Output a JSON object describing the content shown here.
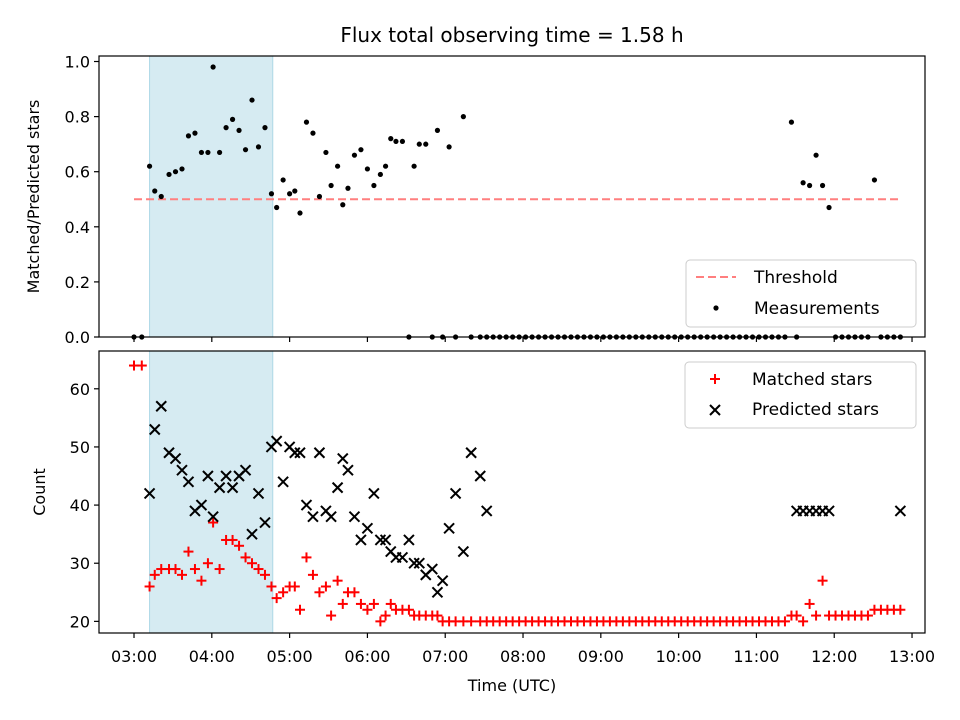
{
  "colors": {
    "threshold": "#ff7f7f",
    "matched": "#ff0000",
    "predicted": "#000000",
    "measurement": "#000000",
    "shade": "#add8e6"
  },
  "chart_data": [
    {
      "type": "scatter",
      "title": "Flux total observing time = 1.58 h",
      "xlabel": "",
      "ylabel": "Matched/Predicted stars",
      "xlim": [
        "02:33",
        "13:10"
      ],
      "ylim": [
        0,
        1.02
      ],
      "yticks": [
        "0.0",
        "0.2",
        "0.4",
        "0.6",
        "0.8",
        "1.0"
      ],
      "shaded_interval": [
        "03:12",
        "04:47"
      ],
      "legend_position": "lower right",
      "threshold": {
        "name": "Threshold",
        "value": 0.5,
        "x_range": [
          "03:00",
          "12:50"
        ]
      },
      "series": [
        {
          "name": "Measurements",
          "x": [
            "03:00",
            "03:06",
            "03:12",
            "03:16",
            "03:21",
            "03:27",
            "03:32",
            "03:37",
            "03:42",
            "03:47",
            "03:52",
            "03:57",
            "04:01",
            "04:06",
            "04:11",
            "04:16",
            "04:21",
            "04:26",
            "04:31",
            "04:36",
            "04:41",
            "04:46",
            "04:50",
            "04:55",
            "05:00",
            "05:04",
            "05:08",
            "05:13",
            "05:18",
            "05:23",
            "05:28",
            "05:32",
            "05:37",
            "05:41",
            "05:45",
            "05:50",
            "05:55",
            "06:00",
            "06:05",
            "06:10",
            "06:14",
            "06:18",
            "06:22",
            "06:27",
            "06:32",
            "06:36",
            "06:40",
            "06:45",
            "06:50",
            "06:54",
            "06:58",
            "07:03",
            "07:08",
            "07:14",
            "07:20",
            "07:27",
            "07:32",
            "07:37",
            "07:42",
            "07:47",
            "07:52",
            "07:57",
            "08:02",
            "08:07",
            "08:12",
            "08:17",
            "08:22",
            "08:27",
            "08:32",
            "08:37",
            "08:42",
            "08:47",
            "08:52",
            "08:57",
            "09:02",
            "09:07",
            "09:12",
            "09:17",
            "09:22",
            "09:27",
            "09:32",
            "09:37",
            "09:42",
            "09:47",
            "09:52",
            "09:57",
            "10:02",
            "10:07",
            "10:12",
            "10:17",
            "10:22",
            "10:27",
            "10:32",
            "10:37",
            "10:42",
            "10:47",
            "10:52",
            "10:57",
            "11:02",
            "11:07",
            "11:12",
            "11:17",
            "11:22",
            "11:27",
            "11:31",
            "11:36",
            "11:41",
            "11:46",
            "11:51",
            "11:56",
            "12:01",
            "12:06",
            "12:11",
            "12:16",
            "12:21",
            "12:26",
            "12:31",
            "12:36",
            "12:41",
            "12:46",
            "12:51"
          ],
          "y": [
            0,
            0,
            0.62,
            0.53,
            0.51,
            0.59,
            0.6,
            0.61,
            0.73,
            0.74,
            0.67,
            0.67,
            0.98,
            0.67,
            0.76,
            0.79,
            0.75,
            0.68,
            0.86,
            0.69,
            0.76,
            0.52,
            0.47,
            0.57,
            0.52,
            0.53,
            0.45,
            0.78,
            0.74,
            0.51,
            0.67,
            0.55,
            0.62,
            0.48,
            0.54,
            0.66,
            0.68,
            0.61,
            0.55,
            0.59,
            0.62,
            0.72,
            0.71,
            0.71,
            0,
            0.62,
            0.7,
            0.7,
            0,
            0.75,
            0,
            0.69,
            0,
            0.8,
            0,
            0,
            0,
            0,
            0,
            0,
            0,
            0,
            0,
            0,
            0,
            0,
            0,
            0,
            0,
            0,
            0,
            0,
            0,
            0,
            0,
            0,
            0,
            0,
            0,
            0,
            0,
            0,
            0,
            0,
            0,
            0,
            0,
            0,
            0,
            0,
            0,
            0,
            0,
            0,
            0,
            0,
            0,
            0,
            0,
            0,
            0,
            0,
            0,
            0.78,
            0,
            0.56,
            0.55,
            0.66,
            0.55,
            0.47,
            0,
            0,
            0,
            0,
            0,
            0,
            0.57,
            0,
            0,
            0,
            0
          ]
        }
      ]
    },
    {
      "type": "scatter",
      "title": "",
      "xlabel": "Time (UTC)",
      "ylabel": "Count",
      "xlim": [
        "02:33",
        "13:10"
      ],
      "ylim": [
        18,
        66.5
      ],
      "yticks": [
        "20",
        "30",
        "40",
        "50",
        "60"
      ],
      "xticks": [
        "03:00",
        "04:00",
        "05:00",
        "06:00",
        "07:00",
        "08:00",
        "09:00",
        "10:00",
        "11:00",
        "12:00",
        "13:00"
      ],
      "shaded_interval": [
        "03:12",
        "04:47"
      ],
      "legend_position": "upper right",
      "series": [
        {
          "name": "Matched stars",
          "marker": "+",
          "x": [
            "03:00",
            "03:06",
            "03:12",
            "03:16",
            "03:21",
            "03:27",
            "03:32",
            "03:37",
            "03:42",
            "03:47",
            "03:52",
            "03:57",
            "04:01",
            "04:06",
            "04:11",
            "04:16",
            "04:21",
            "04:26",
            "04:31",
            "04:36",
            "04:41",
            "04:46",
            "04:50",
            "04:55",
            "05:00",
            "05:04",
            "05:08",
            "05:13",
            "05:18",
            "05:23",
            "05:28",
            "05:32",
            "05:37",
            "05:41",
            "05:45",
            "05:50",
            "05:55",
            "06:00",
            "06:05",
            "06:10",
            "06:14",
            "06:18",
            "06:22",
            "06:27",
            "06:32",
            "06:36",
            "06:40",
            "06:45",
            "06:50",
            "06:54",
            "06:58",
            "07:03",
            "07:08",
            "07:14",
            "07:20",
            "07:27",
            "07:32",
            "07:37",
            "07:42",
            "07:47",
            "07:52",
            "07:57",
            "08:02",
            "08:07",
            "08:12",
            "08:17",
            "08:22",
            "08:27",
            "08:32",
            "08:37",
            "08:42",
            "08:47",
            "08:52",
            "08:57",
            "09:02",
            "09:07",
            "09:12",
            "09:17",
            "09:22",
            "09:27",
            "09:32",
            "09:37",
            "09:42",
            "09:47",
            "09:52",
            "09:57",
            "10:02",
            "10:07",
            "10:12",
            "10:17",
            "10:22",
            "10:27",
            "10:32",
            "10:37",
            "10:42",
            "10:47",
            "10:52",
            "10:57",
            "11:02",
            "11:07",
            "11:12",
            "11:17",
            "11:22",
            "11:27",
            "11:31",
            "11:36",
            "11:41",
            "11:46",
            "11:51",
            "11:56",
            "12:01",
            "12:06",
            "12:11",
            "12:16",
            "12:21",
            "12:26",
            "12:31",
            "12:36",
            "12:41",
            "12:46",
            "12:51"
          ],
          "y": [
            64,
            64,
            26,
            28,
            29,
            29,
            29,
            28,
            32,
            29,
            27,
            30,
            37,
            29,
            34,
            34,
            33,
            31,
            30,
            29,
            28,
            26,
            24,
            25,
            26,
            26,
            22,
            31,
            28,
            25,
            26,
            21,
            27,
            23,
            25,
            25,
            23,
            22,
            23,
            20,
            21,
            23,
            22,
            22,
            22,
            21,
            21,
            21,
            21,
            21,
            20,
            20,
            20,
            20,
            20,
            20,
            20,
            20,
            20,
            20,
            20,
            20,
            20,
            20,
            20,
            20,
            20,
            20,
            20,
            20,
            20,
            20,
            20,
            20,
            20,
            20,
            20,
            20,
            20,
            20,
            20,
            20,
            20,
            20,
            20,
            20,
            20,
            20,
            20,
            20,
            20,
            20,
            20,
            20,
            20,
            20,
            20,
            20,
            20,
            20,
            20,
            20,
            20,
            21,
            21,
            20,
            23,
            21,
            27,
            21,
            21,
            21,
            21,
            21,
            21,
            21,
            22,
            22,
            22,
            22,
            22
          ]
        },
        {
          "name": "Predicted stars",
          "marker": "x",
          "x": [
            "03:12",
            "03:16",
            "03:21",
            "03:27",
            "03:32",
            "03:37",
            "03:42",
            "03:47",
            "03:52",
            "03:57",
            "04:01",
            "04:06",
            "04:11",
            "04:16",
            "04:21",
            "04:26",
            "04:31",
            "04:36",
            "04:41",
            "04:46",
            "04:50",
            "04:55",
            "05:00",
            "05:04",
            "05:08",
            "05:13",
            "05:18",
            "05:23",
            "05:28",
            "05:32",
            "05:37",
            "05:41",
            "05:45",
            "05:50",
            "05:55",
            "06:00",
            "06:05",
            "06:10",
            "06:14",
            "06:18",
            "06:22",
            "06:27",
            "06:32",
            "06:36",
            "06:40",
            "06:45",
            "06:50",
            "06:54",
            "06:58",
            "07:03",
            "07:08",
            "07:14",
            "07:20",
            "07:27",
            "07:32",
            "11:31",
            "11:36",
            "11:41",
            "11:46",
            "11:51",
            "11:56",
            "12:51"
          ],
          "y": [
            42,
            53,
            57,
            49,
            48,
            46,
            44,
            39,
            40,
            45,
            38,
            43,
            45,
            43,
            45,
            46,
            35,
            42,
            37,
            50,
            51,
            44,
            50,
            49,
            49,
            40,
            38,
            49,
            39,
            38,
            43,
            48,
            46,
            38,
            34,
            36,
            42,
            34,
            34,
            32,
            31,
            31,
            34,
            30,
            30,
            28,
            29,
            25,
            27,
            36,
            42,
            32,
            49,
            45,
            39,
            39,
            39,
            39,
            39,
            39,
            39,
            39
          ]
        }
      ]
    }
  ]
}
